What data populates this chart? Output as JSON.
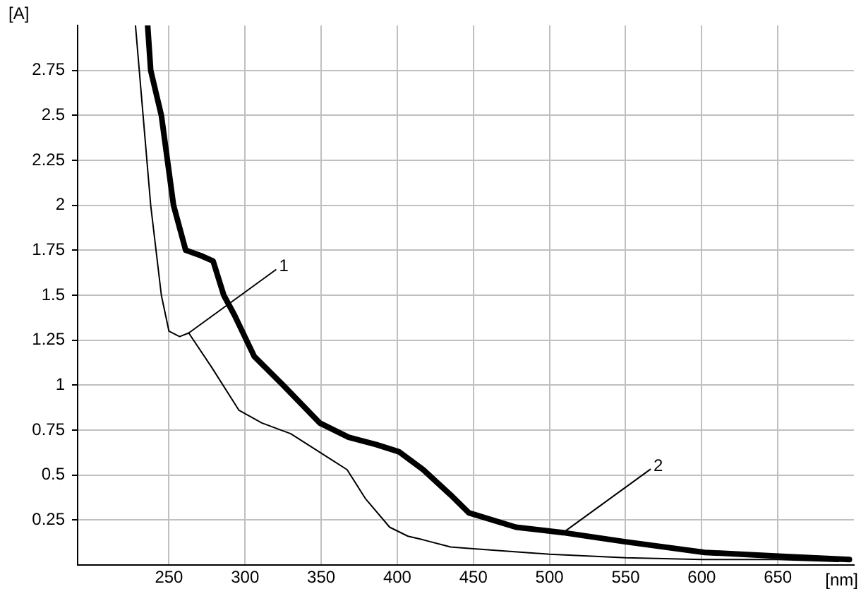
{
  "chart_data": {
    "type": "line",
    "xlabel": "[nm]",
    "ylabel": "[A]",
    "xlim": [
      190,
      700
    ],
    "ylim": [
      0,
      3
    ],
    "xticks": [
      250,
      300,
      350,
      400,
      450,
      500,
      550,
      600,
      650
    ],
    "yticks": [
      0.25,
      0.5,
      0.75,
      1,
      1.25,
      1.5,
      1.75,
      2,
      2.25,
      2.5,
      2.75
    ],
    "grid": true,
    "legend": false,
    "marker": "none",
    "line_style": "solid",
    "annotations": [
      {
        "text": "1",
        "x": 263,
        "y": 1.29
      },
      {
        "text": "2",
        "x": 509,
        "y": 0.18
      }
    ],
    "series": [
      {
        "color": "#000000",
        "x": [
          228,
          233,
          238,
          245,
          250,
          257,
          263,
          278,
          296,
          311,
          330,
          354,
          367,
          379,
          395,
          407,
          417,
          435,
          450,
          500,
          550,
          600,
          650,
          690
        ],
        "values": [
          3.0,
          2.5,
          2.0,
          1.5,
          1.3,
          1.27,
          1.29,
          1.1,
          0.86,
          0.79,
          0.73,
          0.6,
          0.53,
          0.37,
          0.21,
          0.16,
          0.14,
          0.1,
          0.09,
          0.06,
          0.04,
          0.03,
          0.03,
          0.02
        ]
      },
      {
        "color": "#000000",
        "x": [
          236,
          238,
          245,
          253,
          261,
          271,
          279,
          286,
          293,
          306,
          325,
          349,
          368,
          386,
          401,
          417,
          435,
          447,
          478,
          509,
          549,
          602,
          648,
          697
        ],
        "values": [
          3.0,
          2.75,
          2.5,
          2.0,
          1.75,
          1.72,
          1.69,
          1.5,
          1.39,
          1.16,
          1.0,
          0.79,
          0.71,
          0.67,
          0.63,
          0.53,
          0.39,
          0.29,
          0.21,
          0.18,
          0.13,
          0.07,
          0.05,
          0.03
        ]
      }
    ]
  }
}
